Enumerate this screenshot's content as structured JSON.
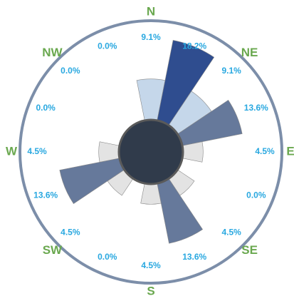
{
  "chart_data": {
    "type": "wind-rose",
    "categories": [
      "N",
      null,
      "NE",
      null,
      "E",
      null,
      "SE",
      null,
      "S",
      null,
      "SW",
      null,
      "W",
      null,
      "NW",
      null
    ],
    "values": [
      9.1,
      18.2,
      9.1,
      13.6,
      4.5,
      0.0,
      4.5,
      13.6,
      4.5,
      0.0,
      4.5,
      13.6,
      4.5,
      0.0,
      0.0,
      0.0
    ],
    "value_labels": [
      "9.1%",
      "18.2%",
      "9.1%",
      "13.6%",
      "4.5%",
      "0.0%",
      "4.5%",
      "13.6%",
      "4.5%",
      "0.0%",
      "4.5%",
      "13.6%",
      "4.5%",
      "0.0%",
      "0.0%",
      "0.0%"
    ],
    "colors": [
      "#c5d7ea",
      "#2f4d8f",
      "#c5d7ea",
      "#66799b",
      "#e3e3e3",
      "#e3e3e3",
      "#e3e3e3",
      "#66799b",
      "#e3e3e3",
      "#e3e3e3",
      "#e3e3e3",
      "#66799b",
      "#e3e3e3",
      "#e3e3e3",
      "#e3e3e3",
      "#e3e3e3"
    ],
    "label_color": "#29a8e0",
    "direction_color": "#6aa84f"
  }
}
